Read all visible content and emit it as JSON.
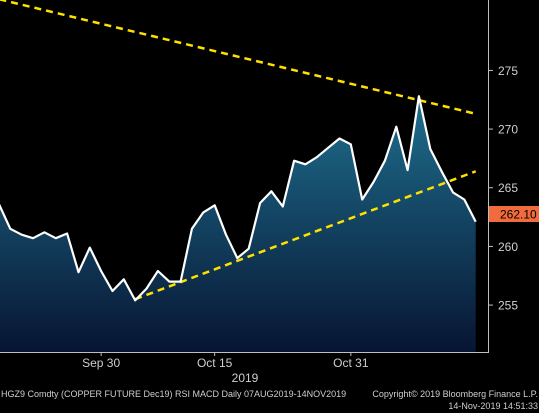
{
  "chart_data": {
    "type": "area",
    "title": "",
    "xlabel": "2019",
    "ylabel": "",
    "ylim": [
      251,
      281
    ],
    "y_ticks": [
      255,
      260,
      265,
      270,
      275
    ],
    "x_tick_labels": [
      "Sep 30",
      "Oct 15",
      "Oct 31"
    ],
    "x_tick_index": [
      9,
      19,
      31
    ],
    "grid": false,
    "colors": {
      "price_line": "#ffffff",
      "area_top": "#1f6f8e",
      "area_bottom": "#071533",
      "trendline": "#ffe100",
      "last_price_label_bg": "#f26b3c",
      "background": "#000000"
    },
    "last_price_label": "262.10",
    "series": [
      {
        "values": [
          263.6,
          261.5,
          261.0,
          260.7,
          261.2,
          260.7,
          261.1,
          257.8,
          259.9,
          257.9,
          256.2,
          257.2,
          255.4,
          256.4,
          257.9,
          257.0,
          257.0,
          261.5,
          262.9,
          263.5,
          261.0,
          259.0,
          259.8,
          263.7,
          264.7,
          263.4,
          267.3,
          267.0,
          267.6,
          268.4,
          269.2,
          268.7,
          264.0,
          265.5,
          267.3,
          270.2,
          266.5,
          272.8,
          268.3,
          266.4,
          264.6,
          264.0,
          262.1
        ]
      }
    ],
    "trendlines": [
      {
        "points": [
          [
            -1,
            281.3
          ],
          [
            42,
            271.3
          ]
        ]
      },
      {
        "points": [
          [
            12,
            255.5
          ],
          [
            42,
            266.4
          ]
        ]
      }
    ],
    "footer": {
      "left": "HGZ9 Comdty (COPPER FUTURE    Dec19) RSI MACD  Daily 07AUG2019-14NOV2019",
      "right": "Copyright© 2019 Bloomberg Finance L.P.",
      "timestamp": "14-Nov-2019 14:51:33"
    }
  }
}
